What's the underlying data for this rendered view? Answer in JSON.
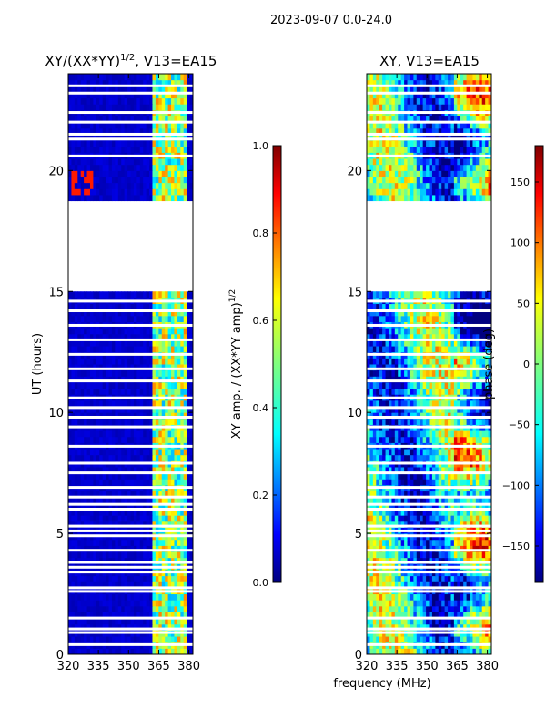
{
  "suptitle": "2023-09-07 0.0-24.0",
  "xlabel_shared": "frequency (MHz)",
  "chart_data": [
    {
      "type": "heatmap",
      "title": "XY/(XX*YY)",
      "title_exp": "1/2",
      "title_suffix": ", V13=EA15",
      "xlabel": "",
      "ylabel": "UT (hours)",
      "xlim": [
        320,
        382
      ],
      "ylim": [
        0,
        24
      ],
      "xticks": [
        320,
        335,
        350,
        365,
        380
      ],
      "yticks": [
        0,
        5,
        10,
        15,
        20
      ],
      "colorbar": {
        "label": "XY amp. / (XX*YY amp)",
        "label_exp": "1/2",
        "range": [
          0.0,
          1.0
        ],
        "ticks": [
          "0.0",
          "0.2",
          "0.4",
          "0.6",
          "0.8",
          "1.0"
        ],
        "cmap": "jet"
      },
      "data_gaps_hours": [
        [
          15.1,
          18.7
        ]
      ]
    },
    {
      "type": "heatmap",
      "title": "XY, V13=EA15",
      "xlabel": "frequency (MHz)",
      "ylabel": "",
      "xlim": [
        320,
        382
      ],
      "ylim": [
        0,
        24
      ],
      "xticks": [
        320,
        335,
        350,
        365,
        380
      ],
      "yticks": [
        0,
        5,
        10,
        15,
        20
      ],
      "colorbar": {
        "label": "phase (deg)",
        "range": [
          -180,
          180
        ],
        "ticks": [
          "150",
          "100",
          "50",
          "0",
          "−50",
          "−100",
          "−150"
        ],
        "cmap": "jet"
      },
      "data_gaps_hours": [
        [
          15.1,
          18.7
        ]
      ]
    }
  ],
  "colors": {
    "jet": [
      "#00007f",
      "#0000ff",
      "#007fff",
      "#00ffff",
      "#7fff7f",
      "#ffff00",
      "#ff7f00",
      "#ff0000",
      "#7f0000"
    ]
  }
}
